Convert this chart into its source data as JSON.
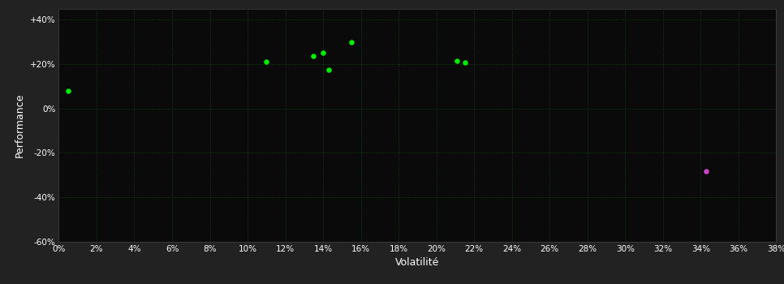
{
  "background_color": "#222222",
  "plot_bg_color": "#0a0a0a",
  "grid_color": "#1a4a1a",
  "text_color": "#ffffff",
  "xlabel": "Volatilité",
  "ylabel": "Performance",
  "xlim": [
    0,
    0.38
  ],
  "ylim": [
    -0.6,
    0.45
  ],
  "green_points_x": [
    0.005,
    0.11,
    0.135,
    0.14,
    0.143,
    0.155,
    0.211,
    0.215
  ],
  "green_points_y": [
    0.08,
    0.21,
    0.235,
    0.25,
    0.175,
    0.3,
    0.215,
    0.205
  ],
  "magenta_points_x": [
    0.343
  ],
  "magenta_points_y": [
    -0.285
  ],
  "green_color": "#00ee00",
  "magenta_color": "#cc44cc",
  "marker_size": 22,
  "yticks": [
    -0.6,
    -0.4,
    -0.2,
    0.0,
    0.2,
    0.4
  ],
  "ytick_labels": [
    "-60%",
    "-40%",
    "-20%",
    "0%",
    "+20%",
    "+40%"
  ],
  "xticks": [
    0.0,
    0.02,
    0.04,
    0.06,
    0.08,
    0.1,
    0.12,
    0.14,
    0.16,
    0.18,
    0.2,
    0.22,
    0.24,
    0.26,
    0.28,
    0.3,
    0.32,
    0.34,
    0.36,
    0.38
  ],
  "xtick_labels": [
    "0%",
    "2%",
    "4%",
    "6%",
    "8%",
    "10%",
    "12%",
    "14%",
    "16%",
    "18%",
    "20%",
    "22%",
    "24%",
    "26%",
    "28%",
    "30%",
    "32%",
    "34%",
    "36%",
    "38%"
  ]
}
